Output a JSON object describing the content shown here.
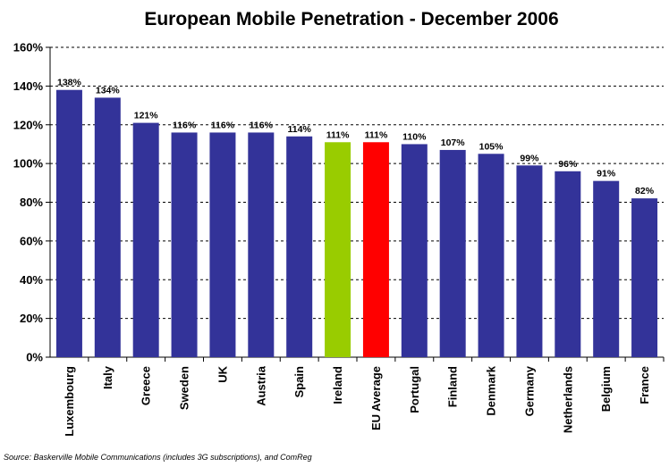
{
  "chart_data": {
    "type": "bar",
    "title": "European Mobile Penetration - December 2006",
    "categories": [
      "Luxembourg",
      "Italy",
      "Greece",
      "Sweden",
      "UK",
      "Austria",
      "Spain",
      "Ireland",
      "EU Average",
      "Portugal",
      "Finland",
      "Denmark",
      "Germany",
      "Netherlands",
      "Belgium",
      "France"
    ],
    "values": [
      138,
      134,
      121,
      116,
      116,
      116,
      114,
      111,
      111,
      110,
      107,
      105,
      99,
      96,
      91,
      82
    ],
    "labels": [
      "138%",
      "134%",
      "121%",
      "116%",
      "116%",
      "116%",
      "114%",
      "111%",
      "111%",
      "110%",
      "107%",
      "105%",
      "99%",
      "96%",
      "91%",
      "82%"
    ],
    "yticks": [
      0,
      20,
      40,
      60,
      80,
      100,
      120,
      140,
      160
    ],
    "ytick_labels": [
      "0%",
      "20%",
      "40%",
      "60%",
      "80%",
      "100%",
      "120%",
      "140%",
      "160%"
    ],
    "ylim": [
      0,
      160
    ],
    "xlabel": "",
    "ylabel": "",
    "grid": true,
    "colors": {
      "default": "#333399",
      "Ireland": "#99cc00",
      "EU Average": "#ff0000"
    }
  },
  "source": "Source: Baskerville Mobile Communications (includes 3G subscriptions), and ComReg"
}
